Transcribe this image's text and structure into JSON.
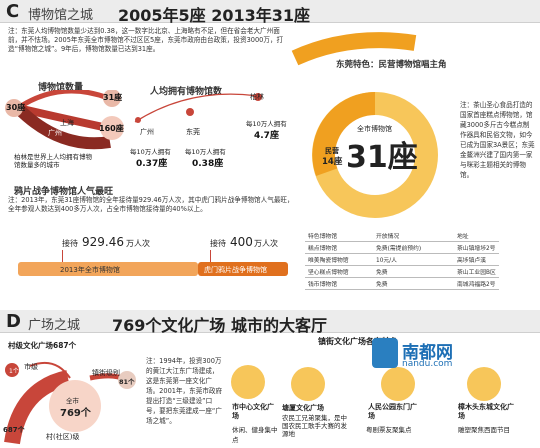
{
  "section_c": {
    "letter": "C",
    "name": "博物馆之城",
    "title": "2005年5座 2013年31座",
    "intro_note": "注：东莞人均博物馆数量少达到0.38，这一数字比北京、上海略有不足，但在省会老大广州面前，并不怯场。2005年东莞全市博物馆不过区区5座，东莞市政府由台政策，投资3000万，打造“博物馆之城”。9年后，博物馆数量已达到31座。",
    "museum_count": {
      "title": "博物馆数量",
      "values": [
        "30座",
        "31座",
        "160座"
      ],
      "cities": [
        "上海",
        "广州",
        "柏林"
      ],
      "note": "柏林是世界上人均拥有博物馆数量多的城市"
    },
    "per_capita": {
      "title": "人均拥有博物馆数",
      "entries": [
        {
          "city": "广州",
          "caption": "每10万人拥有",
          "value": "0.37座"
        },
        {
          "city": "东莞",
          "caption": "每10万人拥有",
          "value": "0.38座"
        },
        {
          "city": "柏林",
          "caption": "每10万人拥有",
          "value": "4.7座"
        }
      ]
    },
    "donut": {
      "header": "东莞特色：民营博物馆唱主角",
      "center_caption": "全市博物馆",
      "center_value": "31座",
      "slice_label": "民营",
      "slice_value": "14座"
    },
    "side_note": "注：茶山圣心食品打造的国家首座糕点博物馆，馆藏3000多斤古今糕点制作器具和民俗文物，如今已成为国家3A景区；东莞金鳌洲兴建了国内第一家与咪彩主题相关的博物馆。",
    "visitors": {
      "title": "鸦片战争博物馆人气最旺",
      "note": "注：2013年，东莞31座博物馆的全年接待量929.46万人次，其中虎门鸦片战争博物馆人气最旺，全年参观人数达到400多万人次，占全市博物馆接待量的40%以上。",
      "total_label": "接待",
      "total_value": "929.46",
      "total_unit": "万人次",
      "total_caption": "2013年全市博物馆",
      "opium_label": "接待",
      "opium_value": "400",
      "opium_unit": "万人次",
      "opium_caption": "虎门鸦片战争博物馆"
    },
    "table": {
      "headers": [
        "特色博物馆",
        "开放情况",
        "地址"
      ],
      "rows": [
        [
          "糕点博物馆",
          "免费(需提前预约)",
          "茶山镇增埗2号"
        ],
        [
          "唯美陶瓷博物馆",
          "10元/人",
          "高埗镇卢溪"
        ],
        [
          "坚心糕点博物馆",
          "免费",
          "茶山工业园B区"
        ],
        [
          "钱币博物馆",
          "免费",
          "南城鸿福路2号"
        ]
      ]
    }
  },
  "section_d": {
    "letter": "D",
    "name": "广场之城",
    "title": "769个文化广场 城市的大客厅",
    "village": {
      "title": "村级文化广场687个",
      "center_caption": "全市",
      "center_value": "769个",
      "city_label": "市级",
      "city_value": "1个",
      "town_label": "镇街级别",
      "town_value": "81个",
      "village_label": "村(社区)级",
      "village_value": "687个"
    },
    "note": "注：1994年，投资300万的黄江大江东广场建成，这是东莞第一座文化广场。2001年，东莞市政府提出打造“三级建设”口号，要把东莞建成一座“广场之城”。",
    "featured_title": "镇街文化广场各有特色",
    "cards": [
      {
        "title": "市中心文化广场",
        "caption": "休闲、健身集中点"
      },
      {
        "title": "塘厦文化广场",
        "caption": "农民工兄弟聚集，是中国农民工歌手大赛的发源地"
      },
      {
        "title": "人民公园东门广场",
        "caption": "粤剧票友聚集点"
      },
      {
        "title": "樟木头东城文化广场",
        "caption": "雕塑聚焦西面节目"
      }
    ]
  },
  "watermark": {
    "text": "南都网",
    "url": "nandu.com"
  },
  "colors": {
    "accent_red": "#c8463a",
    "accent_orange": "#f0a020",
    "accent_yellow": "#f7c65a",
    "dark": "#222222"
  }
}
